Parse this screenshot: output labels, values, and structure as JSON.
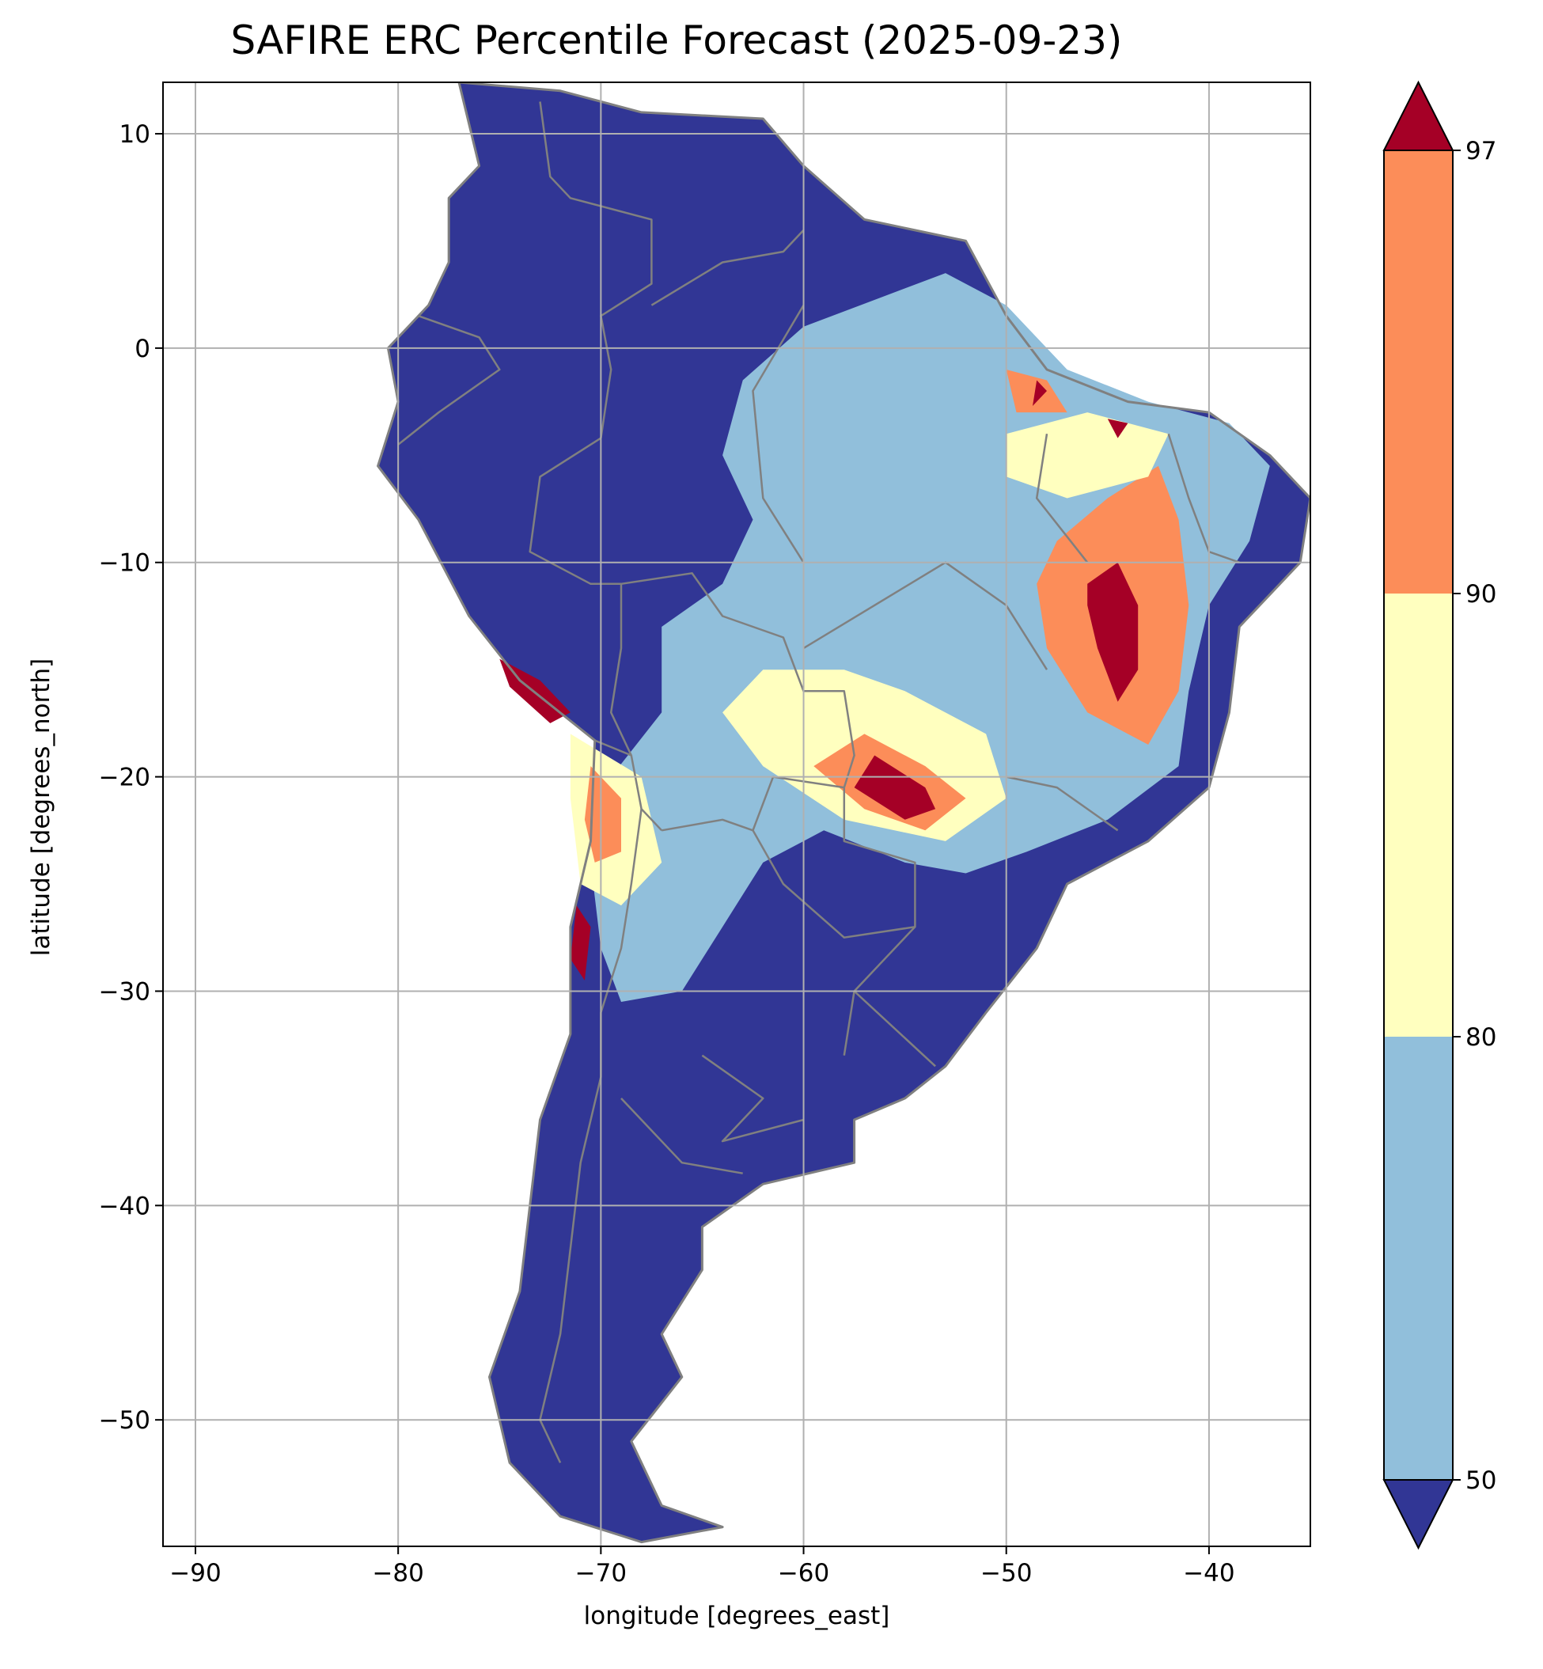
{
  "title": "SAFIRE ERC Percentile Forecast (2025-09-23)",
  "xlabel": "longitude [degrees_east]",
  "ylabel": "latitude [degrees_north]",
  "map": {
    "xlim": [
      -91.6,
      -35.0
    ],
    "ylim": [
      -55.9,
      12.4
    ],
    "xticks": [
      -90,
      -80,
      -70,
      -60,
      -50,
      -40
    ],
    "yticks": [
      10,
      0,
      -10,
      -20,
      -30,
      -40,
      -50
    ],
    "grid": true,
    "border_color": "#808080"
  },
  "colorbar": {
    "ticks": [
      50,
      80,
      90,
      97
    ],
    "bins": [
      {
        "range": "<50",
        "color": "#313695"
      },
      {
        "range": "50-80",
        "color": "#91bfdb"
      },
      {
        "range": "80-90",
        "color": "#ffffbf"
      },
      {
        "range": "90-97",
        "color": "#fc8d59"
      },
      {
        "range": ">97",
        "color": "#a50026"
      }
    ]
  },
  "regions": {
    "continent": {
      "class": "<50",
      "outline": [
        [
          -77,
          12.4
        ],
        [
          -72,
          12
        ],
        [
          -68,
          11
        ],
        [
          -62,
          10.7
        ],
        [
          -60,
          8.5
        ],
        [
          -57,
          6
        ],
        [
          -52,
          5
        ],
        [
          -50,
          1.5
        ],
        [
          -48,
          -1
        ],
        [
          -44,
          -2.5
        ],
        [
          -40,
          -3
        ],
        [
          -37,
          -5
        ],
        [
          -35,
          -7
        ],
        [
          -35.5,
          -10
        ],
        [
          -38.5,
          -13
        ],
        [
          -39,
          -17
        ],
        [
          -40,
          -20.5
        ],
        [
          -43,
          -23
        ],
        [
          -47,
          -25
        ],
        [
          -48.5,
          -28
        ],
        [
          -51,
          -31
        ],
        [
          -53,
          -33.5
        ],
        [
          -55,
          -35
        ],
        [
          -57.5,
          -36
        ],
        [
          -57.5,
          -38
        ],
        [
          -62,
          -39
        ],
        [
          -65,
          -41
        ],
        [
          -65,
          -43
        ],
        [
          -67,
          -46
        ],
        [
          -66,
          -48
        ],
        [
          -68.5,
          -51
        ],
        [
          -67,
          -54
        ],
        [
          -64,
          -55
        ],
        [
          -68,
          -55.7
        ],
        [
          -72,
          -54.5
        ],
        [
          -74.5,
          -52
        ],
        [
          -75.5,
          -48
        ],
        [
          -74,
          -44
        ],
        [
          -73.5,
          -40
        ],
        [
          -73,
          -36
        ],
        [
          -71.5,
          -32
        ],
        [
          -71.5,
          -27
        ],
        [
          -70.5,
          -23
        ],
        [
          -70.3,
          -18.3
        ],
        [
          -74,
          -15.5
        ],
        [
          -76.5,
          -12.5
        ],
        [
          -79,
          -8
        ],
        [
          -81,
          -5.5
        ],
        [
          -80,
          -2.5
        ],
        [
          -80.5,
          0
        ],
        [
          -78.5,
          2
        ],
        [
          -77.5,
          4
        ],
        [
          -77.5,
          7
        ],
        [
          -76,
          8.5
        ],
        [
          -77,
          12.4
        ]
      ]
    },
    "moderate": {
      "class": "50-80",
      "outline": [
        [
          -60,
          1
        ],
        [
          -53,
          3.5
        ],
        [
          -50,
          2
        ],
        [
          -47,
          -1
        ],
        [
          -43,
          -2.5
        ],
        [
          -39,
          -3.5
        ],
        [
          -37,
          -5.5
        ],
        [
          -38,
          -9
        ],
        [
          -40,
          -12
        ],
        [
          -41,
          -16
        ],
        [
          -41.5,
          -19.5
        ],
        [
          -45,
          -22
        ],
        [
          -49,
          -23.5
        ],
        [
          -52,
          -24.5
        ],
        [
          -55,
          -24
        ],
        [
          -59,
          -22.5
        ],
        [
          -62,
          -24
        ],
        [
          -64,
          -27
        ],
        [
          -66,
          -30
        ],
        [
          -69,
          -30.5
        ],
        [
          -70,
          -28
        ],
        [
          -70.5,
          -24
        ],
        [
          -69.5,
          -20
        ],
        [
          -67,
          -17
        ],
        [
          -67,
          -13
        ],
        [
          -64,
          -11
        ],
        [
          -62.5,
          -8
        ],
        [
          -64,
          -5
        ],
        [
          -63,
          -1.5
        ]
      ]
    },
    "elevated": {
      "class": "80-90",
      "outline": [
        [
          -55,
          -16
        ],
        [
          -51,
          -18
        ],
        [
          -50,
          -21
        ],
        [
          -53,
          -23
        ],
        [
          -58,
          -22
        ],
        [
          -62,
          -19.5
        ],
        [
          -64,
          -17
        ],
        [
          -62,
          -15
        ],
        [
          -58,
          -15
        ]
      ]
    },
    "high": {
      "class": "90-97",
      "outline": [
        [
          -47.5,
          -9
        ],
        [
          -45,
          -7
        ],
        [
          -42.5,
          -5.5
        ],
        [
          -41.5,
          -8
        ],
        [
          -41,
          -12
        ],
        [
          -41.5,
          -16
        ],
        [
          -43,
          -18.5
        ],
        [
          -46,
          -17
        ],
        [
          -48,
          -14
        ],
        [
          -48.5,
          -11
        ]
      ]
    },
    "extreme": {
      "class": ">97",
      "outline": [
        [
          -46,
          -11
        ],
        [
          -44.5,
          -10
        ],
        [
          -43.5,
          -12
        ],
        [
          -43.5,
          -15
        ],
        [
          -44.5,
          -16.5
        ],
        [
          -45.5,
          -14
        ],
        [
          -46,
          -12
        ]
      ]
    }
  },
  "extra_regions": [
    {
      "class": "80-90",
      "outline": [
        [
          -50,
          -4
        ],
        [
          -46,
          -3
        ],
        [
          -42,
          -4
        ],
        [
          -43,
          -6
        ],
        [
          -47,
          -7
        ],
        [
          -50,
          -6
        ]
      ]
    },
    {
      "class": "90-97",
      "outline": [
        [
          -57,
          -18
        ],
        [
          -54,
          -19.5
        ],
        [
          -52,
          -21
        ],
        [
          -54,
          -22.5
        ],
        [
          -57,
          -21.5
        ],
        [
          -59.5,
          -19.5
        ]
      ]
    },
    {
      "class": ">97",
      "outline": [
        [
          -56.5,
          -19
        ],
        [
          -54,
          -20.5
        ],
        [
          -53.5,
          -21.5
        ],
        [
          -55,
          -22
        ],
        [
          -57.5,
          -20.5
        ]
      ]
    },
    {
      "class": "80-90",
      "outline": [
        [
          -71.5,
          -18
        ],
        [
          -68,
          -20
        ],
        [
          -67,
          -24
        ],
        [
          -69,
          -26
        ],
        [
          -71,
          -25
        ],
        [
          -71.5,
          -21
        ]
      ]
    },
    {
      "class": "90-97",
      "outline": [
        [
          -70.5,
          -19.5
        ],
        [
          -69,
          -21
        ],
        [
          -69,
          -23.5
        ],
        [
          -70.3,
          -24
        ],
        [
          -70.8,
          -22
        ]
      ]
    },
    {
      "class": ">97",
      "outline": [
        [
          -75,
          -14.5
        ],
        [
          -73,
          -15.5
        ],
        [
          -71.5,
          -17
        ],
        [
          -72.5,
          -17.5
        ],
        [
          -74.5,
          -15.8
        ]
      ]
    },
    {
      "class": ">97",
      "outline": [
        [
          -71.2,
          -26
        ],
        [
          -70.5,
          -27
        ],
        [
          -70.8,
          -29.5
        ],
        [
          -71.5,
          -28.5
        ]
      ]
    },
    {
      "class": "90-97",
      "outline": [
        [
          -50,
          -1
        ],
        [
          -48,
          -1.5
        ],
        [
          -47,
          -3
        ],
        [
          -49.5,
          -3
        ]
      ]
    },
    {
      "class": ">97",
      "outline": [
        [
          -48.5,
          -1.5
        ],
        [
          -48,
          -2
        ],
        [
          -48.7,
          -2.7
        ]
      ]
    },
    {
      "class": ">97",
      "outline": [
        [
          -45,
          -3.3
        ],
        [
          -44,
          -3.5
        ],
        [
          -44.5,
          -4.2
        ]
      ]
    }
  ],
  "borders": [
    [
      [
        -73,
        11.5
      ],
      [
        -72.5,
        8
      ],
      [
        -71.5,
        7
      ],
      [
        -67.5,
        6
      ],
      [
        -67.5,
        3
      ],
      [
        -70,
        1.5
      ],
      [
        -69.5,
        -1
      ],
      [
        -70,
        -4.2
      ]
    ],
    [
      [
        -67.5,
        2
      ],
      [
        -64,
        4
      ],
      [
        -61,
        4.5
      ],
      [
        -60,
        5.5
      ]
    ],
    [
      [
        -79,
        1.5
      ],
      [
        -76,
        0.5
      ],
      [
        -75,
        -1
      ],
      [
        -78,
        -3
      ],
      [
        -80,
        -4.5
      ]
    ],
    [
      [
        -70,
        -4.2
      ],
      [
        -73,
        -6
      ],
      [
        -73.5,
        -9.5
      ],
      [
        -70.5,
        -11
      ],
      [
        -69,
        -11
      ]
    ],
    [
      [
        -69,
        -11
      ],
      [
        -65.5,
        -10.5
      ],
      [
        -64,
        -12.5
      ],
      [
        -61,
        -13.5
      ],
      [
        -60,
        -16
      ],
      [
        -58,
        -16
      ],
      [
        -57.5,
        -19
      ],
      [
        -58,
        -20.5
      ]
    ],
    [
      [
        -69,
        -11
      ],
      [
        -69,
        -14
      ],
      [
        -69.5,
        -17
      ],
      [
        -68.5,
        -19
      ],
      [
        -68,
        -21.5
      ],
      [
        -67,
        -22.5
      ]
    ],
    [
      [
        -67,
        -22.5
      ],
      [
        -64,
        -22
      ],
      [
        -62.5,
        -22.5
      ],
      [
        -61.5,
        -20
      ],
      [
        -58,
        -20.5
      ]
    ],
    [
      [
        -58,
        -20.5
      ],
      [
        -58,
        -23
      ],
      [
        -54.5,
        -24
      ],
      [
        -54.5,
        -27
      ],
      [
        -58,
        -27.5
      ],
      [
        -61,
        -25
      ],
      [
        -62.5,
        -22.5
      ]
    ],
    [
      [
        -70.3,
        -18.3
      ],
      [
        -68.5,
        -19
      ]
    ],
    [
      [
        -68,
        -21.5
      ],
      [
        -68.5,
        -25
      ],
      [
        -69,
        -28
      ],
      [
        -70,
        -31
      ],
      [
        -70,
        -34
      ],
      [
        -71,
        -38
      ],
      [
        -71.5,
        -42
      ],
      [
        -72,
        -46
      ],
      [
        -73,
        -50
      ],
      [
        -72,
        -52
      ]
    ],
    [
      [
        -54.5,
        -27
      ],
      [
        -56,
        -28.5
      ],
      [
        -57.5,
        -30
      ],
      [
        -53.5,
        -33.5
      ]
    ],
    [
      [
        -57.5,
        -30
      ],
      [
        -58,
        -33
      ]
    ],
    [
      [
        -60,
        -14
      ],
      [
        -53,
        -10
      ],
      [
        -50,
        -12
      ],
      [
        -48,
        -15
      ]
    ],
    [
      [
        -60,
        -10
      ],
      [
        -62,
        -7
      ],
      [
        -62.5,
        -2
      ],
      [
        -60,
        2
      ]
    ],
    [
      [
        -50,
        -20
      ],
      [
        -47.5,
        -20.5
      ],
      [
        -44.5,
        -22.5
      ]
    ],
    [
      [
        -46,
        -10
      ],
      [
        -48.5,
        -7
      ],
      [
        -48,
        -4
      ]
    ],
    [
      [
        -42,
        -4
      ],
      [
        -41,
        -7
      ],
      [
        -40,
        -9.5
      ],
      [
        -38.5,
        -10
      ]
    ],
    [
      [
        -65,
        -33
      ],
      [
        -62,
        -35
      ],
      [
        -64,
        -37
      ],
      [
        -60,
        -36
      ]
    ],
    [
      [
        -69,
        -35
      ],
      [
        -66,
        -38
      ],
      [
        -63,
        -38.5
      ]
    ]
  ]
}
